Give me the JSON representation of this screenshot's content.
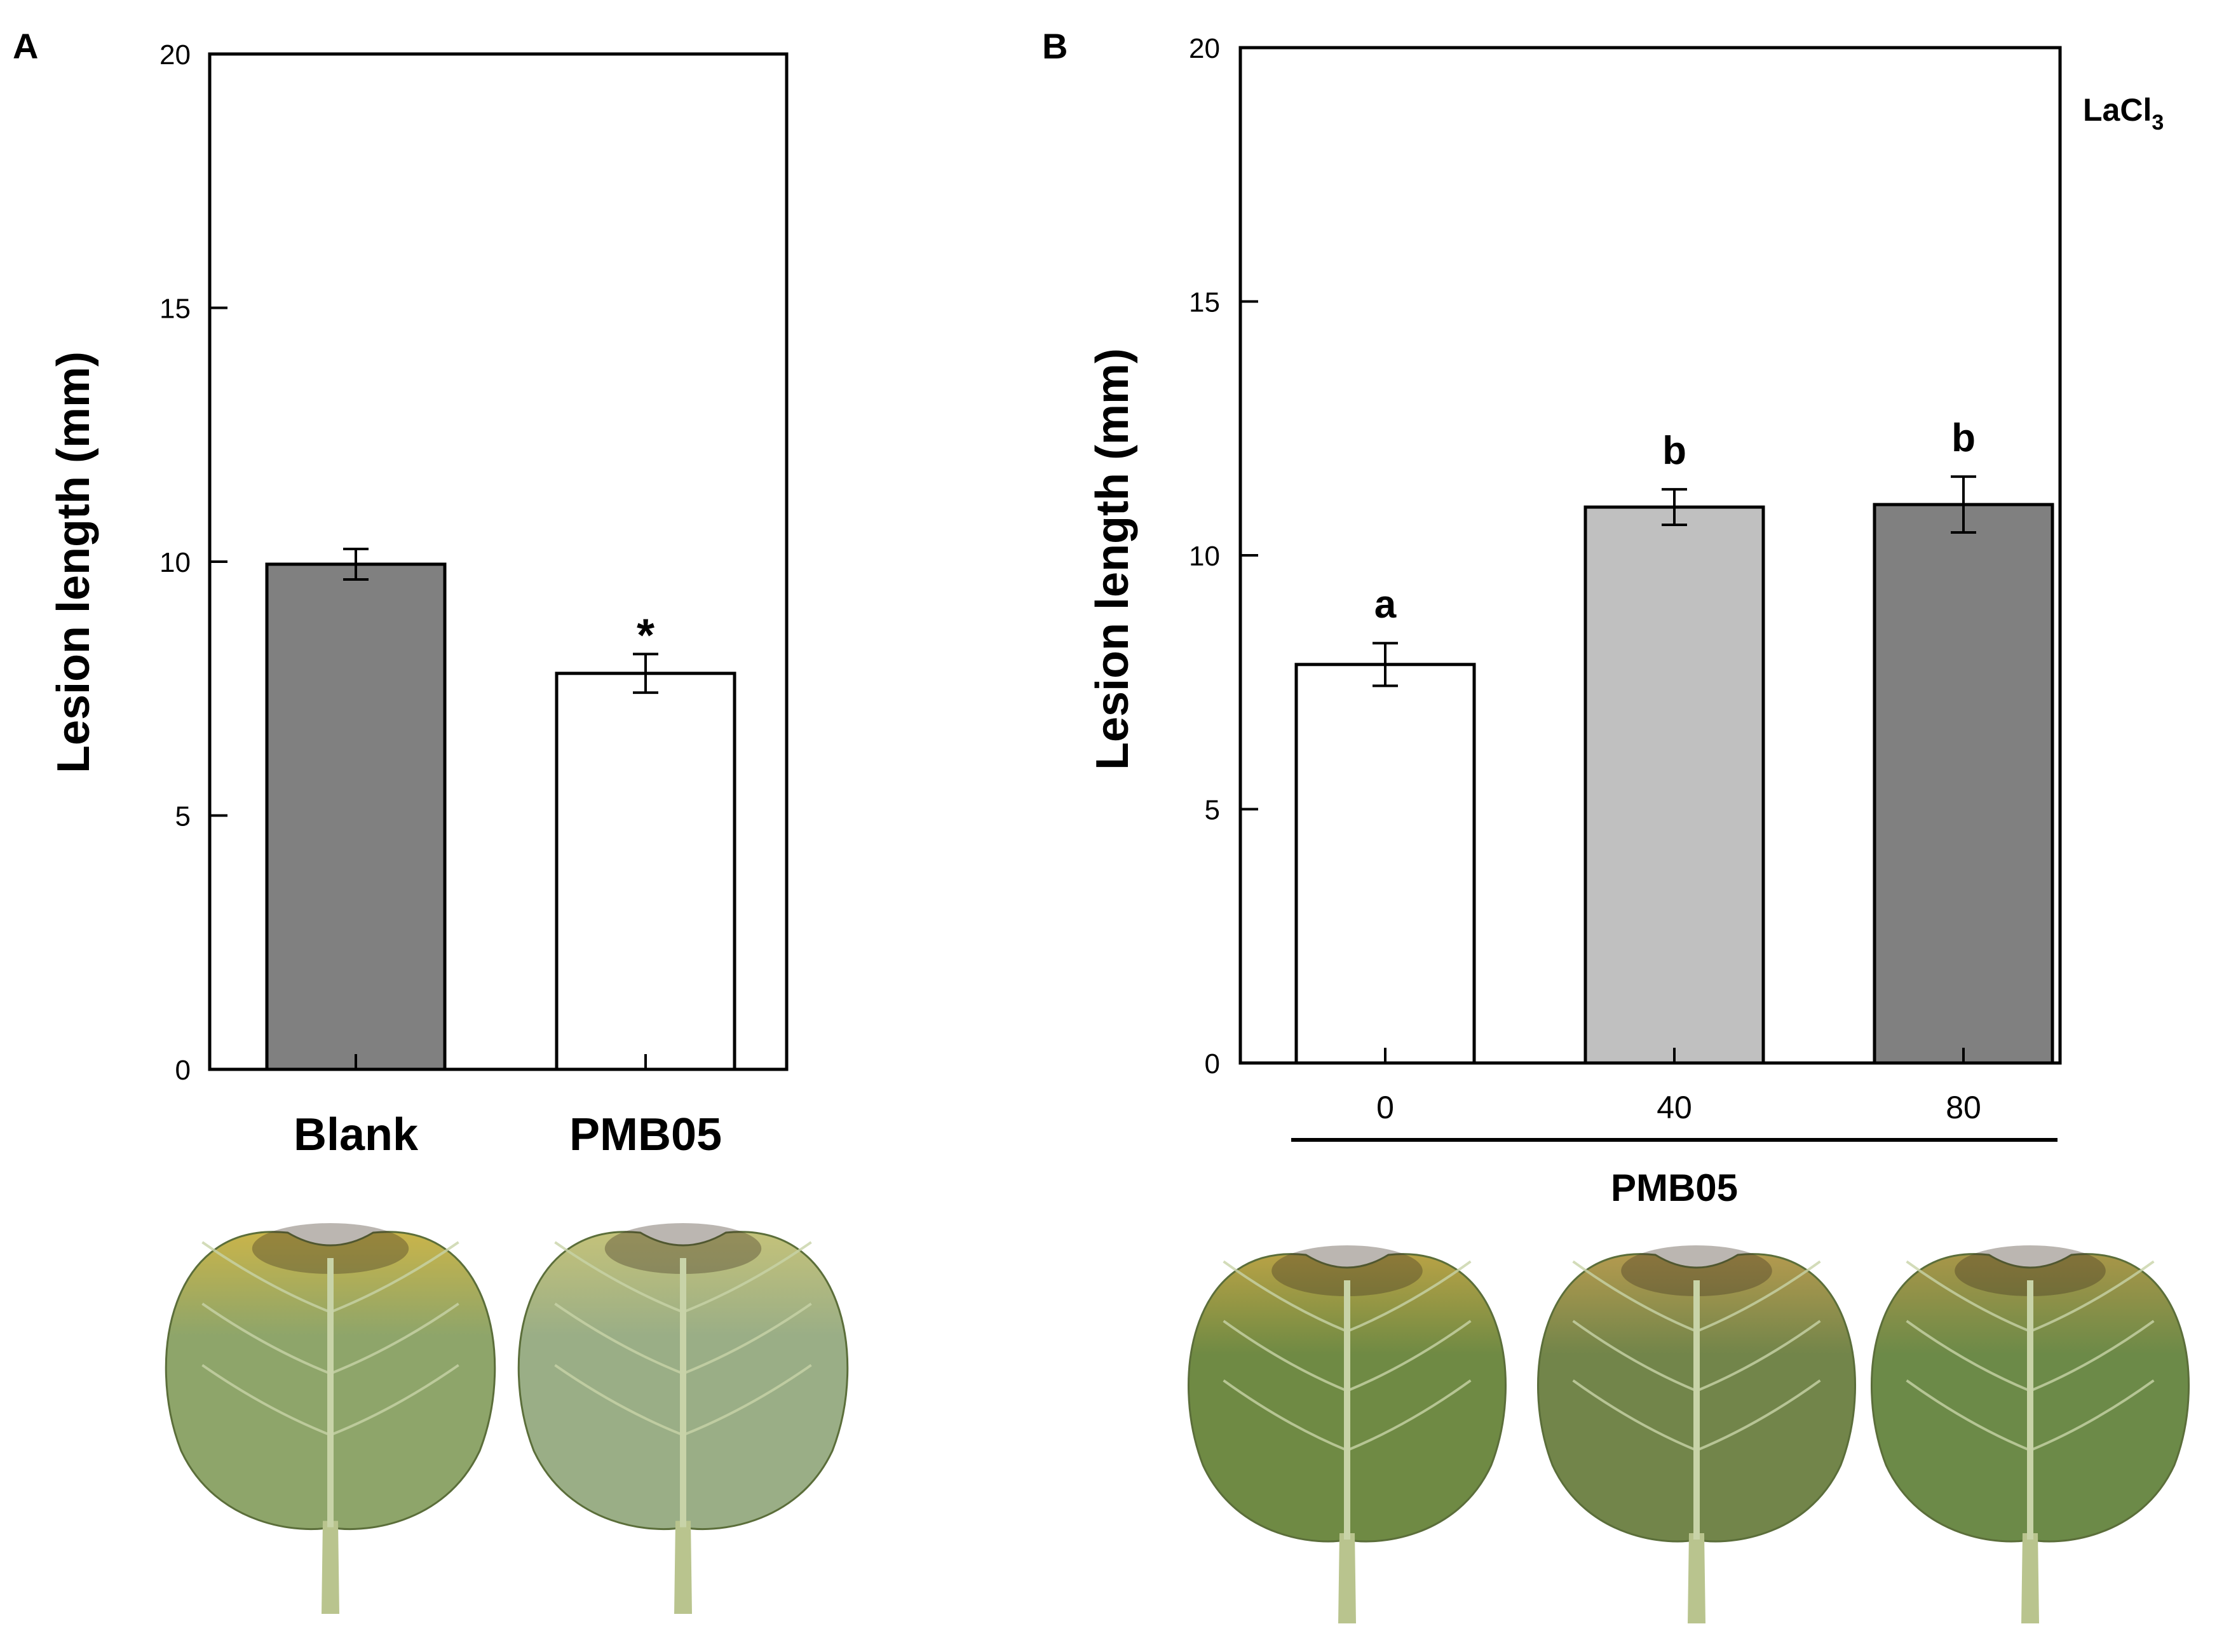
{
  "panels": [
    {
      "letter": "A",
      "chart_data": {
        "type": "bar",
        "categories": [
          "Blank",
          "PMB05"
        ],
        "values": [
          9.95,
          7.8
        ],
        "errors": [
          0.3,
          0.38
        ],
        "bar_colors": [
          "#808080",
          "#ffffff"
        ],
        "annotations": [
          "",
          "*"
        ],
        "title": "",
        "xlabel": "",
        "ylabel": "Lesion length (mm)",
        "ylim": [
          0,
          20
        ],
        "yticks": [
          "0",
          "5",
          "10",
          "15",
          "20"
        ],
        "grid": false,
        "legend": "none"
      },
      "leaves": [
        {
          "shade": "#8ea56a",
          "tint": "#c9b44a"
        },
        {
          "shade": "#9aae86",
          "tint": "#c4c27a"
        }
      ]
    },
    {
      "letter": "B",
      "chart_data": {
        "type": "bar",
        "categories": [
          "0",
          "40",
          "80"
        ],
        "values": [
          7.85,
          10.95,
          11.0
        ],
        "errors": [
          0.42,
          0.35,
          0.55
        ],
        "bar_colors": [
          "#ffffff",
          "#c0c0c0",
          "#808080"
        ],
        "annotations": [
          "a",
          "b",
          "b"
        ],
        "title": "",
        "inset_label": "LaCl",
        "inset_subscript": "3",
        "xlabel": "PMB05",
        "ylabel": "Lesion length (mm)",
        "ylim": [
          0,
          20
        ],
        "yticks": [
          "0",
          "5",
          "10",
          "15",
          "20"
        ],
        "grid": false,
        "legend": "none"
      },
      "leaves": [
        {
          "shade": "#6f8a44",
          "tint": "#b8a245"
        },
        {
          "shade": "#72854a",
          "tint": "#b39a4e"
        },
        {
          "shade": "#6c8a48",
          "tint": "#a89648"
        }
      ]
    }
  ],
  "colors": {
    "axis": "#000000",
    "leaf_vein": "#c8d3a8",
    "leaf_edge": "#5b6e3a",
    "lesion_dark": "#3d2f1f"
  }
}
